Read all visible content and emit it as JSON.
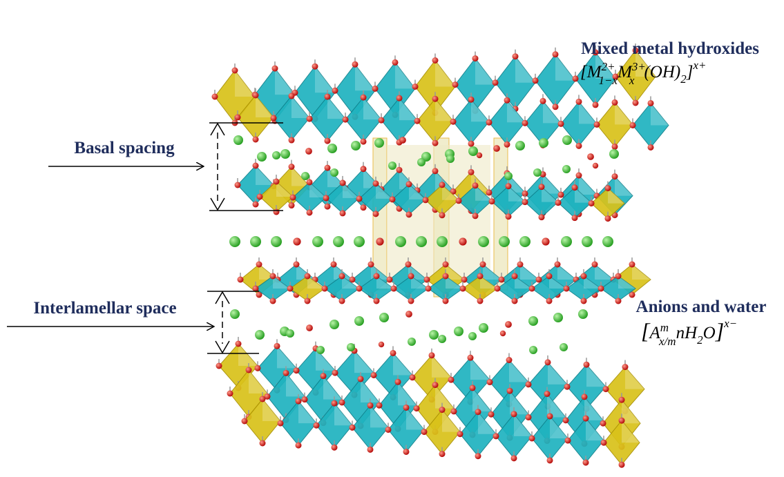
{
  "labels": {
    "top_right": {
      "title": "Mixed metal hydroxides",
      "formula": [
        "[",
        "M",
        "2+",
        "1−x",
        "M",
        "3+",
        "x",
        "(OH)",
        "2",
        "]",
        "x+"
      ]
    },
    "basal": "Basal spacing",
    "interlamellar": "Interlamellar space",
    "bottom_right": {
      "title": "Anions and water",
      "formula": [
        "[",
        "A",
        "m",
        "x/m",
        "nH",
        "2",
        "O",
        "]",
        "x−"
      ]
    }
  }
}
